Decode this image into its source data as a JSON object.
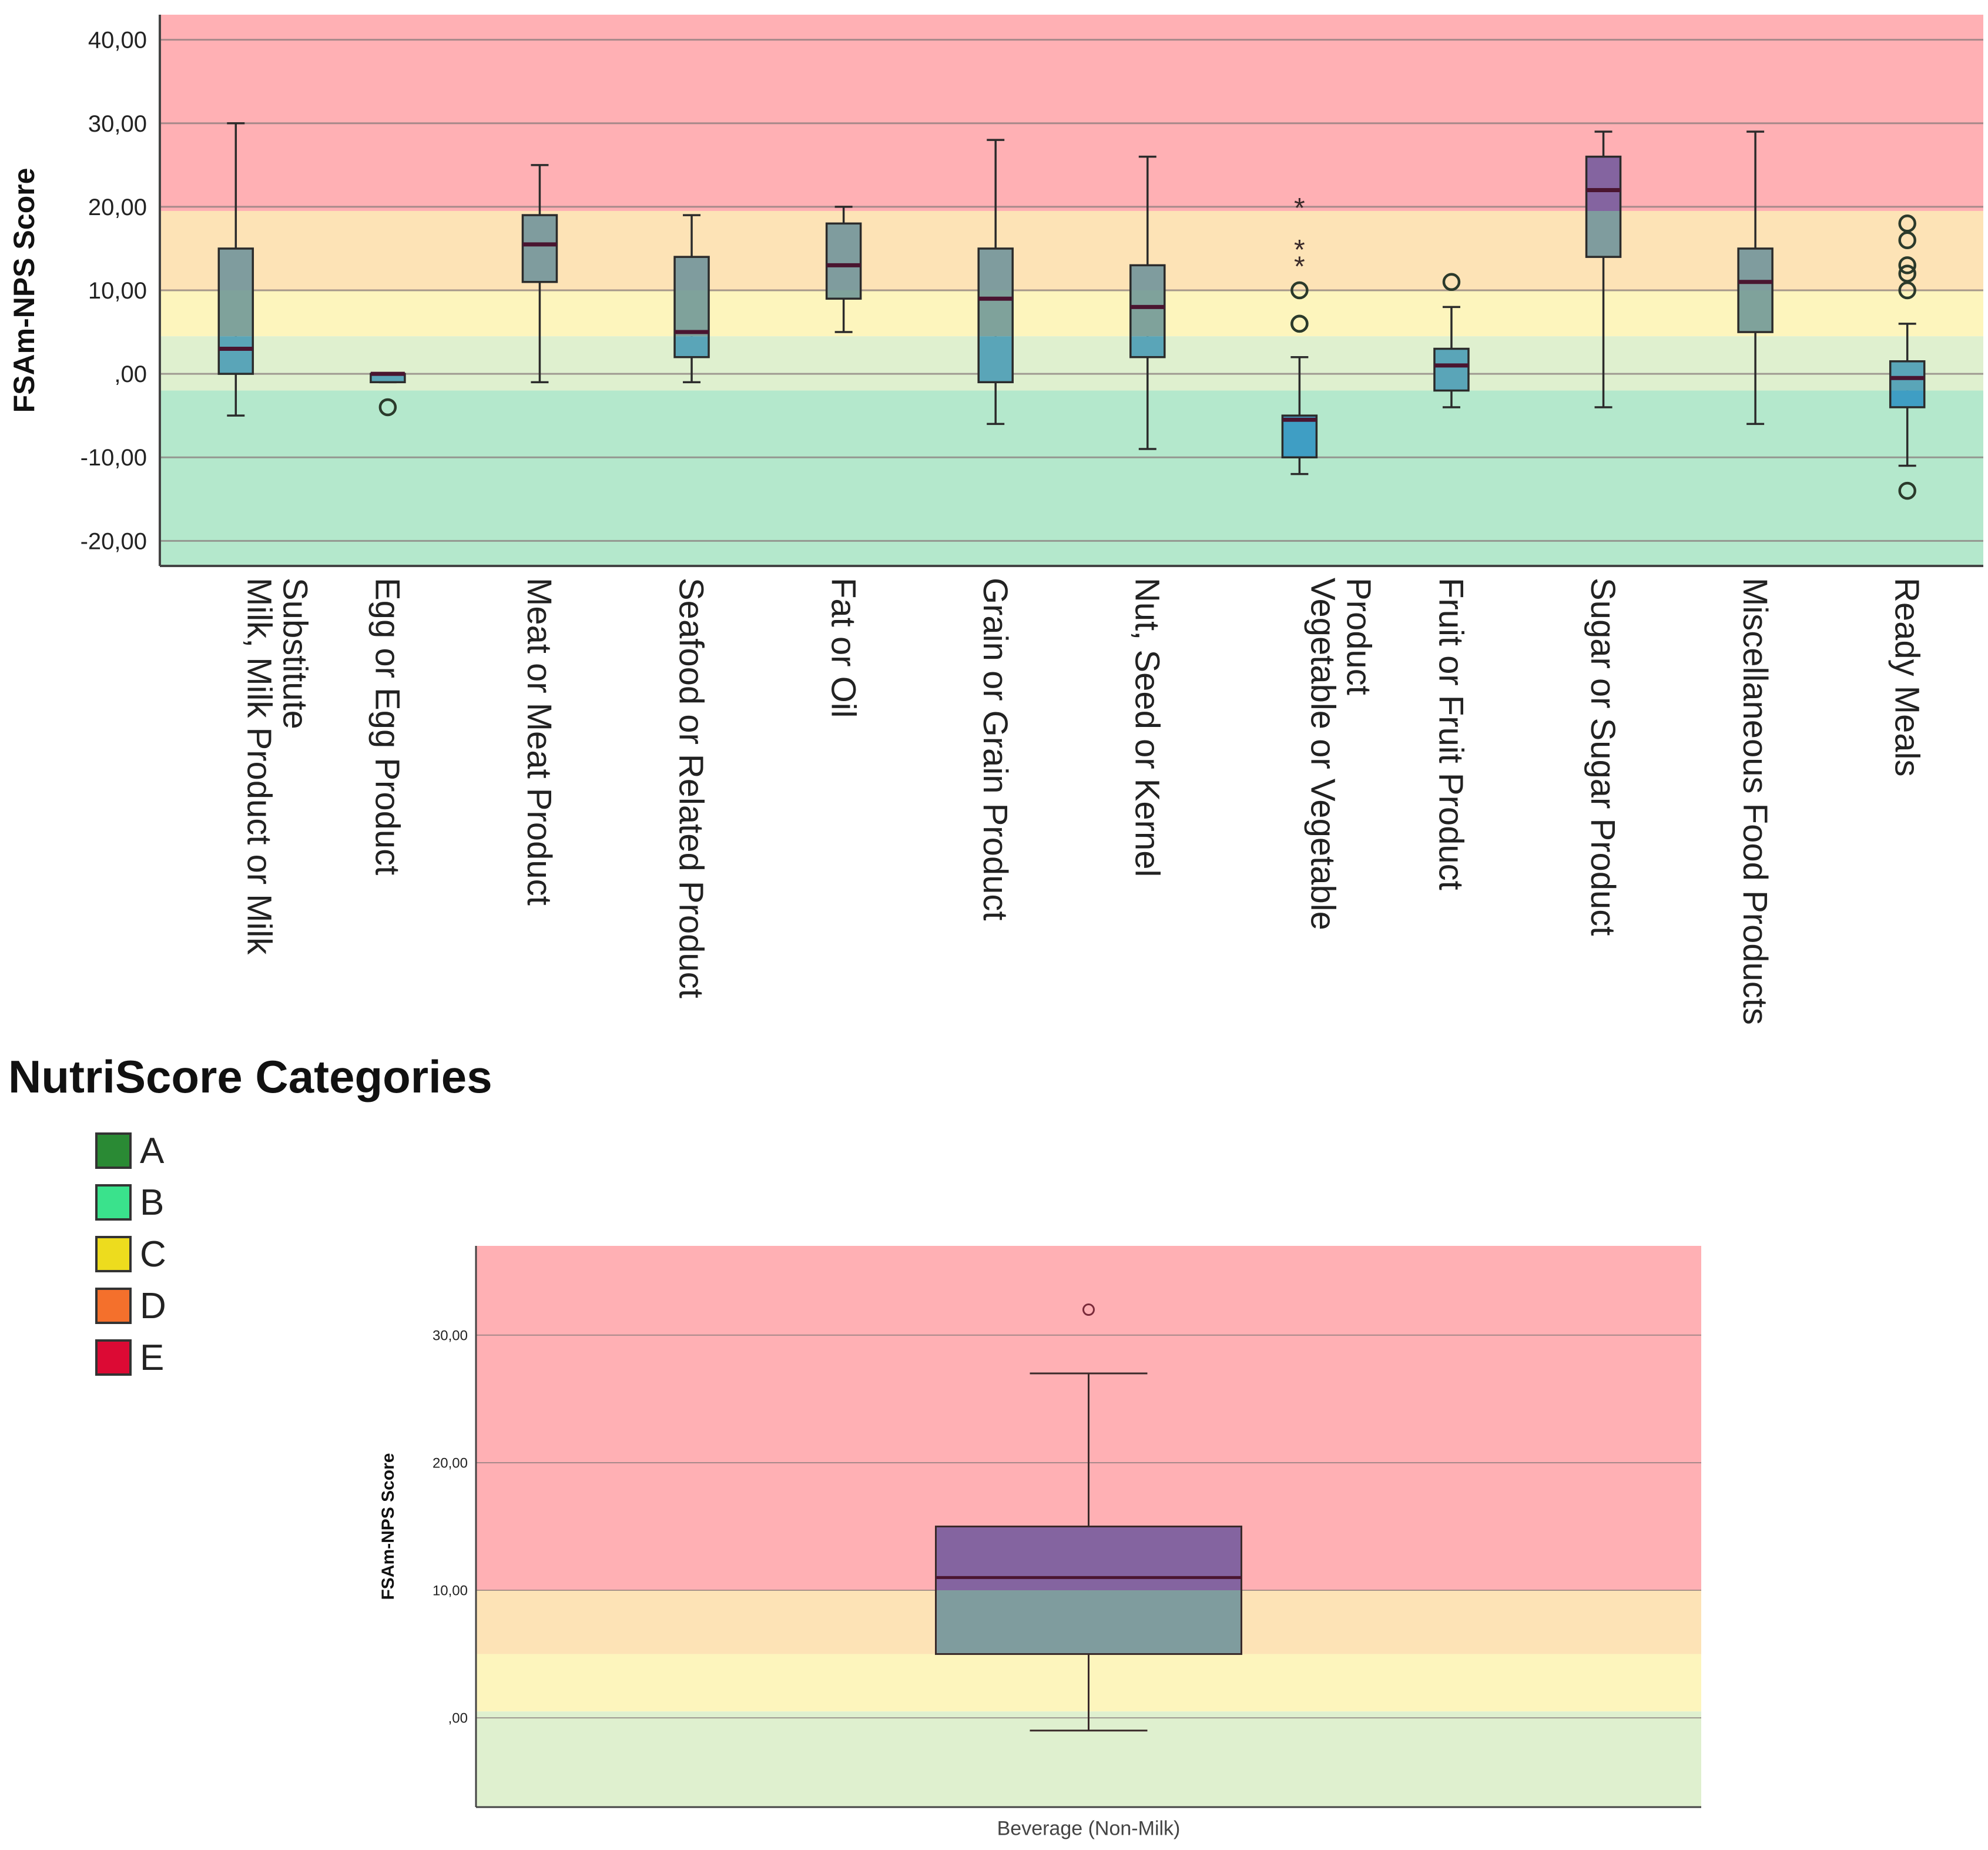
{
  "chart_data": [
    {
      "type": "boxplot",
      "ylabel": "FSAm-NPS Score",
      "ylim": [
        -23,
        43
      ],
      "yticks": [
        40,
        30,
        20,
        10,
        0,
        -10,
        -20
      ],
      "ytick_labels": [
        "40,00",
        "30,00",
        "20,00",
        "10,00",
        ",00",
        "-10,00",
        "-20,00"
      ],
      "bands": [
        {
          "grade": "E",
          "from": 19.5,
          "to": 43,
          "color": "#ffb0b4"
        },
        {
          "grade": "D",
          "from": 10,
          "to": 19.5,
          "color": "#fde3b6"
        },
        {
          "grade": "C",
          "from": 4.5,
          "to": 10,
          "color": "#fdf5bd"
        },
        {
          "grade": "B",
          "from": -2,
          "to": 4.5,
          "color": "#dff0cf"
        },
        {
          "grade": "A",
          "from": -23,
          "to": -2,
          "color": "#b4e8cc"
        }
      ],
      "categories": [
        {
          "label": "Milk, Milk Product or Milk Substitute",
          "min": -5,
          "q1": 0,
          "median": 3,
          "q3": 15,
          "max": 30,
          "outliers": [],
          "extremes": []
        },
        {
          "label": "Egg or Egg Product",
          "min": -1,
          "q1": -1,
          "median": 0,
          "q3": 0,
          "max": 0,
          "outliers": [
            -4
          ],
          "extremes": []
        },
        {
          "label": "Meat or Meat Product",
          "min": -1,
          "q1": 11,
          "median": 15.5,
          "q3": 19,
          "max": 25,
          "outliers": [],
          "extremes": []
        },
        {
          "label": "Seafood or Related Product",
          "min": -1,
          "q1": 2,
          "median": 5,
          "q3": 14,
          "max": 19,
          "outliers": [],
          "extremes": []
        },
        {
          "label": "Fat or Oil",
          "min": 5,
          "q1": 9,
          "median": 13,
          "q3": 18,
          "max": 20,
          "outliers": [],
          "extremes": []
        },
        {
          "label": "Grain or Grain Product",
          "min": -6,
          "q1": -1,
          "median": 9,
          "q3": 15,
          "max": 28,
          "outliers": [],
          "extremes": []
        },
        {
          "label": "Nut, Seed or Kernel",
          "min": -9,
          "q1": 2,
          "median": 8,
          "q3": 13,
          "max": 26,
          "outliers": [],
          "extremes": []
        },
        {
          "label": "Vegetable or Vegetable Product",
          "min": -12,
          "q1": -10,
          "median": -5.5,
          "q3": -5,
          "max": 2,
          "outliers": [
            10,
            6,
            6
          ],
          "extremes": [
            20,
            15,
            13
          ]
        },
        {
          "label": "Fruit or Fruit Product",
          "min": -4,
          "q1": -2,
          "median": 1,
          "q3": 3,
          "max": 8,
          "outliers": [
            11
          ],
          "extremes": []
        },
        {
          "label": "Sugar or Sugar Product",
          "min": -4,
          "q1": 14,
          "median": 22,
          "q3": 26,
          "max": 29,
          "outliers": [],
          "extremes": []
        },
        {
          "label": "Miscellaneous Food Products",
          "min": -6,
          "q1": 5,
          "median": 11,
          "q3": 15,
          "max": 29,
          "outliers": [],
          "extremes": []
        },
        {
          "label": "Ready Meals",
          "min": -11,
          "q1": -4,
          "median": -0.5,
          "q3": 1.5,
          "max": 6,
          "outliers": [
            18,
            16,
            13,
            12,
            10,
            -14
          ],
          "extremes": []
        }
      ]
    },
    {
      "type": "boxplot",
      "ylabel": "FSAm-NPS Score",
      "xlabel": "Beverage (Non-Milk)",
      "ylim": [
        -7,
        37
      ],
      "yticks": [
        30,
        20,
        10,
        0
      ],
      "ytick_labels": [
        "30,00",
        "20,00",
        "10,00",
        ",00"
      ],
      "bands": [
        {
          "grade": "E",
          "from": 10,
          "to": 37,
          "color": "#ffb0b4"
        },
        {
          "grade": "D",
          "from": 5,
          "to": 10,
          "color": "#fde3b6"
        },
        {
          "grade": "C",
          "from": 0.5,
          "to": 5,
          "color": "#fdf5bd"
        },
        {
          "grade": "B",
          "from": -7,
          "to": 0.5,
          "color": "#dff0cf"
        }
      ],
      "categories": [
        {
          "label": "Beverage (Non-Milk)",
          "min": -1,
          "q1": 5,
          "median": 11,
          "q3": 15,
          "max": 27,
          "outliers": [
            32
          ],
          "extremes": []
        }
      ]
    }
  ],
  "legend": {
    "title": "NutriScore Categories",
    "items": [
      {
        "label": "A",
        "color": "#2a8a34"
      },
      {
        "label": "B",
        "color": "#3ae28c"
      },
      {
        "label": "C",
        "color": "#eddc1e"
      },
      {
        "label": "D",
        "color": "#f4702c"
      },
      {
        "label": "E",
        "color": "#dc0a34"
      }
    ]
  }
}
